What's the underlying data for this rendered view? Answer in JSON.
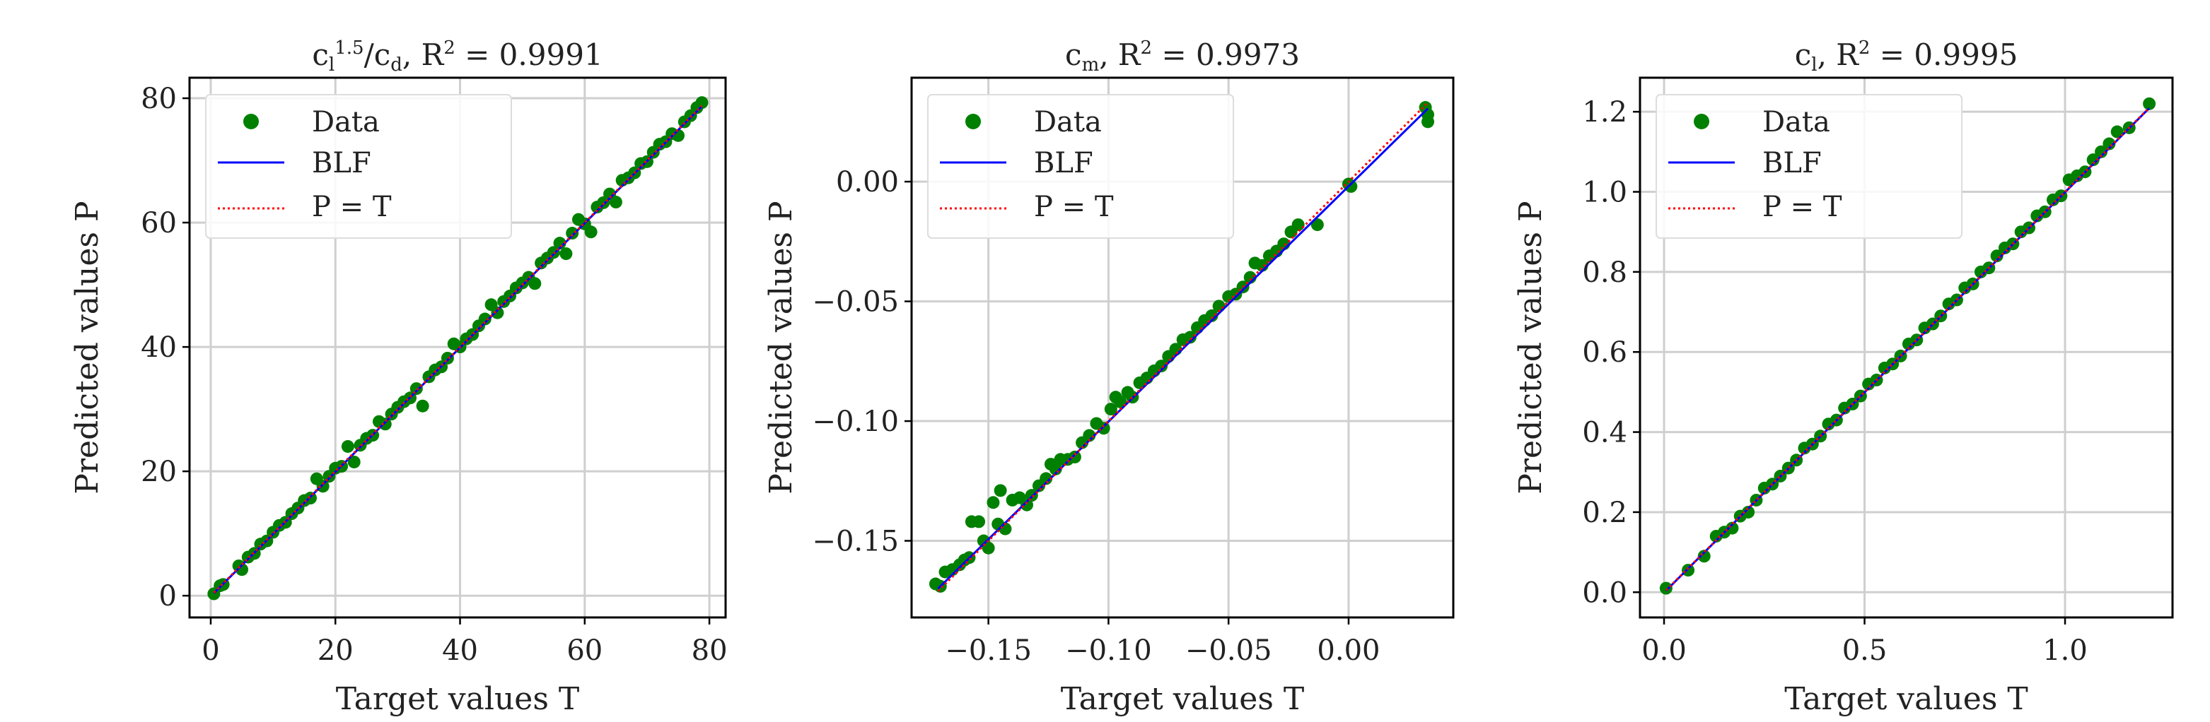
{
  "chart_data": [
    {
      "type": "scatter",
      "title_parts": {
        "main": "c",
        "sub1": "l",
        "sup1": "1.5",
        "mid": "/c",
        "sub2": "d",
        "r": ", R",
        "sup2": "2",
        "value": " = 0.9991"
      },
      "r2": 0.9991,
      "xlabel": "Target values T",
      "ylabel": "Predicted values P",
      "xlim": [
        -3.4,
        82.6
      ],
      "ylim": [
        -3.5,
        83.3
      ],
      "xticks": [
        0,
        20,
        40,
        60,
        80
      ],
      "xtick_labels": [
        "0",
        "20",
        "40",
        "60",
        "80"
      ],
      "yticks": [
        0,
        20,
        40,
        60,
        80
      ],
      "ytick_labels": [
        "0",
        "20",
        "40",
        "60",
        "80"
      ],
      "grid": true,
      "legend": {
        "placement": "top-left",
        "entries": [
          "Data",
          "BLF",
          "P = T"
        ]
      },
      "blf": [
        [
          0.5,
          0.4
        ],
        [
          78.8,
          78.7
        ]
      ],
      "identity": [
        [
          0.5,
          0.5
        ],
        [
          78.8,
          78.8
        ]
      ],
      "points": [
        [
          0.5,
          0.3
        ],
        [
          1.5,
          1.6
        ],
        [
          2,
          1.8
        ],
        [
          4.5,
          4.8
        ],
        [
          5,
          4.2
        ],
        [
          6,
          6.2
        ],
        [
          7,
          6.8
        ],
        [
          8,
          8.3
        ],
        [
          9,
          8.8
        ],
        [
          10,
          10.2
        ],
        [
          11,
          11.3
        ],
        [
          12,
          11.8
        ],
        [
          13,
          13.2
        ],
        [
          14,
          14.1
        ],
        [
          15,
          15.3
        ],
        [
          16,
          15.7
        ],
        [
          17,
          18.8
        ],
        [
          18,
          17.6
        ],
        [
          19,
          19.2
        ],
        [
          20,
          20.5
        ],
        [
          21,
          20.8
        ],
        [
          22,
          24
        ],
        [
          23,
          21.5
        ],
        [
          24,
          24.2
        ],
        [
          25,
          25.3
        ],
        [
          26,
          25.8
        ],
        [
          27,
          28
        ],
        [
          28,
          27.6
        ],
        [
          29,
          29.2
        ],
        [
          30,
          30.3
        ],
        [
          31,
          31.2
        ],
        [
          32,
          31.8
        ],
        [
          33,
          33.3
        ],
        [
          34,
          30.5
        ],
        [
          35,
          35.2
        ],
        [
          36,
          36.3
        ],
        [
          37,
          36.8
        ],
        [
          38,
          38.2
        ],
        [
          39,
          40.5
        ],
        [
          40,
          40
        ],
        [
          41,
          41.3
        ],
        [
          42,
          42
        ],
        [
          43,
          43.4
        ],
        [
          44,
          44.5
        ],
        [
          45,
          46.8
        ],
        [
          46,
          45.5
        ],
        [
          47,
          47.3
        ],
        [
          48,
          48.2
        ],
        [
          49,
          49.5
        ],
        [
          50,
          50.3
        ],
        [
          51,
          51.2
        ],
        [
          52,
          50.2
        ],
        [
          53,
          53.5
        ],
        [
          54,
          54.3
        ],
        [
          55,
          55.2
        ],
        [
          56,
          56.7
        ],
        [
          57,
          55
        ],
        [
          58,
          58.3
        ],
        [
          59,
          60.5
        ],
        [
          60,
          59.8
        ],
        [
          61,
          58.5
        ],
        [
          62,
          62.5
        ],
        [
          63,
          63.2
        ],
        [
          64,
          64.6
        ],
        [
          65,
          63.3
        ],
        [
          66,
          66.8
        ],
        [
          67,
          67.2
        ],
        [
          68,
          68
        ],
        [
          69,
          69.5
        ],
        [
          70,
          69.8
        ],
        [
          71,
          71.3
        ],
        [
          72,
          72.6
        ],
        [
          73,
          73
        ],
        [
          74,
          74.3
        ],
        [
          75,
          74
        ],
        [
          76,
          76.2
        ],
        [
          77,
          77.2
        ],
        [
          78,
          78.5
        ],
        [
          78.8,
          79.3
        ]
      ]
    },
    {
      "type": "scatter",
      "title_parts": {
        "main": "c",
        "sub1": "m",
        "r": ", R",
        "sup2": "2",
        "value": " = 0.9973"
      },
      "r2": 0.9973,
      "xlabel": "Target values T",
      "ylabel": "Predicted values P",
      "xlim": [
        -0.182,
        0.0436
      ],
      "ylim": [
        -0.182,
        0.0434
      ],
      "xticks": [
        -0.15,
        -0.1,
        -0.05,
        0.0
      ],
      "xtick_labels": [
        "−0.15",
        "−0.10",
        "−0.05",
        "0.00"
      ],
      "yticks": [
        -0.15,
        -0.1,
        -0.05,
        0.0
      ],
      "ytick_labels": [
        "−0.15",
        "−0.10",
        "−0.05",
        "0.00"
      ],
      "grid": true,
      "legend": {
        "placement": "top-left",
        "entries": [
          "Data",
          "BLF",
          "P = T"
        ]
      },
      "blf": [
        [
          -0.171,
          -0.17
        ],
        [
          0.033,
          0.0305
        ]
      ],
      "identity": [
        [
          -0.171,
          -0.171
        ],
        [
          0.033,
          0.033
        ]
      ],
      "points": [
        [
          -0.172,
          -0.168
        ],
        [
          -0.17,
          -0.169
        ],
        [
          -0.168,
          -0.163
        ],
        [
          -0.165,
          -0.162
        ],
        [
          -0.162,
          -0.16
        ],
        [
          -0.16,
          -0.158
        ],
        [
          -0.158,
          -0.157
        ],
        [
          -0.157,
          -0.142
        ],
        [
          -0.154,
          -0.142
        ],
        [
          -0.152,
          -0.15
        ],
        [
          -0.15,
          -0.153
        ],
        [
          -0.148,
          -0.134
        ],
        [
          -0.146,
          -0.143
        ],
        [
          -0.145,
          -0.129
        ],
        [
          -0.143,
          -0.145
        ],
        [
          -0.14,
          -0.133
        ],
        [
          -0.137,
          -0.132
        ],
        [
          -0.134,
          -0.135
        ],
        [
          -0.132,
          -0.131
        ],
        [
          -0.129,
          -0.127
        ],
        [
          -0.126,
          -0.124
        ],
        [
          -0.124,
          -0.118
        ],
        [
          -0.122,
          -0.12
        ],
        [
          -0.12,
          -0.116
        ],
        [
          -0.117,
          -0.116
        ],
        [
          -0.114,
          -0.115
        ],
        [
          -0.111,
          -0.109
        ],
        [
          -0.108,
          -0.106
        ],
        [
          -0.105,
          -0.101
        ],
        [
          -0.102,
          -0.103
        ],
        [
          -0.099,
          -0.095
        ],
        [
          -0.097,
          -0.09
        ],
        [
          -0.095,
          -0.092
        ],
        [
          -0.092,
          -0.088
        ],
        [
          -0.09,
          -0.09
        ],
        [
          -0.087,
          -0.084
        ],
        [
          -0.084,
          -0.082
        ],
        [
          -0.081,
          -0.079
        ],
        [
          -0.078,
          -0.077
        ],
        [
          -0.075,
          -0.073
        ],
        [
          -0.072,
          -0.07
        ],
        [
          -0.069,
          -0.066
        ],
        [
          -0.066,
          -0.065
        ],
        [
          -0.063,
          -0.061
        ],
        [
          -0.06,
          -0.058
        ],
        [
          -0.057,
          -0.056
        ],
        [
          -0.054,
          -0.052
        ],
        [
          -0.05,
          -0.048
        ],
        [
          -0.047,
          -0.047
        ],
        [
          -0.044,
          -0.044
        ],
        [
          -0.041,
          -0.04
        ],
        [
          -0.039,
          -0.034
        ],
        [
          -0.036,
          -0.035
        ],
        [
          -0.033,
          -0.031
        ],
        [
          -0.03,
          -0.029
        ],
        [
          -0.027,
          -0.026
        ],
        [
          -0.024,
          -0.021
        ],
        [
          -0.021,
          -0.018
        ],
        [
          -0.013,
          -0.018
        ],
        [
          0.0,
          -0.001
        ],
        [
          0.001,
          -0.002
        ],
        [
          0.032,
          0.031
        ],
        [
          0.033,
          0.025
        ],
        [
          0.033,
          0.028
        ]
      ]
    },
    {
      "type": "scatter",
      "title_parts": {
        "main": "c",
        "sub1": "l",
        "r": ", R",
        "sup2": "2",
        "value": " = 0.9995"
      },
      "r2": 0.9995,
      "xlabel": "Target values T",
      "ylabel": "Predicted values P",
      "xlim": [
        -0.06,
        1.268
      ],
      "ylim": [
        -0.063,
        1.285
      ],
      "xticks": [
        0.0,
        0.5,
        1.0
      ],
      "xtick_labels": [
        "0.0",
        "0.5",
        "1.0"
      ],
      "yticks": [
        0.0,
        0.2,
        0.4,
        0.6,
        0.8,
        1.0,
        1.2
      ],
      "ytick_labels": [
        "0.0",
        "0.2",
        "0.4",
        "0.6",
        "0.8",
        "1.0",
        "1.2"
      ],
      "grid": true,
      "legend": {
        "placement": "top-left",
        "entries": [
          "Data",
          "BLF",
          "P = T"
        ]
      },
      "blf": [
        [
          0.005,
          0.004
        ],
        [
          1.21,
          1.209
        ]
      ],
      "identity": [
        [
          0.005,
          0.005
        ],
        [
          1.21,
          1.21
        ]
      ],
      "points": [
        [
          0.005,
          0.01
        ],
        [
          0.06,
          0.055
        ],
        [
          0.1,
          0.09
        ],
        [
          0.13,
          0.14
        ],
        [
          0.15,
          0.15
        ],
        [
          0.17,
          0.16
        ],
        [
          0.19,
          0.19
        ],
        [
          0.21,
          0.2
        ],
        [
          0.23,
          0.23
        ],
        [
          0.25,
          0.26
        ],
        [
          0.27,
          0.27
        ],
        [
          0.29,
          0.29
        ],
        [
          0.31,
          0.31
        ],
        [
          0.33,
          0.33
        ],
        [
          0.35,
          0.36
        ],
        [
          0.37,
          0.37
        ],
        [
          0.39,
          0.39
        ],
        [
          0.41,
          0.42
        ],
        [
          0.43,
          0.43
        ],
        [
          0.45,
          0.46
        ],
        [
          0.47,
          0.47
        ],
        [
          0.49,
          0.49
        ],
        [
          0.51,
          0.52
        ],
        [
          0.53,
          0.53
        ],
        [
          0.55,
          0.56
        ],
        [
          0.57,
          0.57
        ],
        [
          0.59,
          0.59
        ],
        [
          0.61,
          0.62
        ],
        [
          0.63,
          0.63
        ],
        [
          0.65,
          0.66
        ],
        [
          0.67,
          0.67
        ],
        [
          0.69,
          0.69
        ],
        [
          0.71,
          0.72
        ],
        [
          0.73,
          0.73
        ],
        [
          0.75,
          0.76
        ],
        [
          0.77,
          0.77
        ],
        [
          0.79,
          0.8
        ],
        [
          0.81,
          0.81
        ],
        [
          0.83,
          0.84
        ],
        [
          0.85,
          0.86
        ],
        [
          0.87,
          0.87
        ],
        [
          0.89,
          0.9
        ],
        [
          0.91,
          0.91
        ],
        [
          0.93,
          0.94
        ],
        [
          0.95,
          0.95
        ],
        [
          0.97,
          0.98
        ],
        [
          0.99,
          0.99
        ],
        [
          1.01,
          1.03
        ],
        [
          1.03,
          1.04
        ],
        [
          1.05,
          1.05
        ],
        [
          1.07,
          1.08
        ],
        [
          1.09,
          1.1
        ],
        [
          1.11,
          1.12
        ],
        [
          1.13,
          1.15
        ],
        [
          1.16,
          1.16
        ],
        [
          1.21,
          1.22
        ]
      ]
    }
  ],
  "colors": {
    "data": "#008000",
    "blf": "#0000ff",
    "identity": "#ff0000",
    "grid": "#cfcfcf",
    "axes": "#000000"
  }
}
